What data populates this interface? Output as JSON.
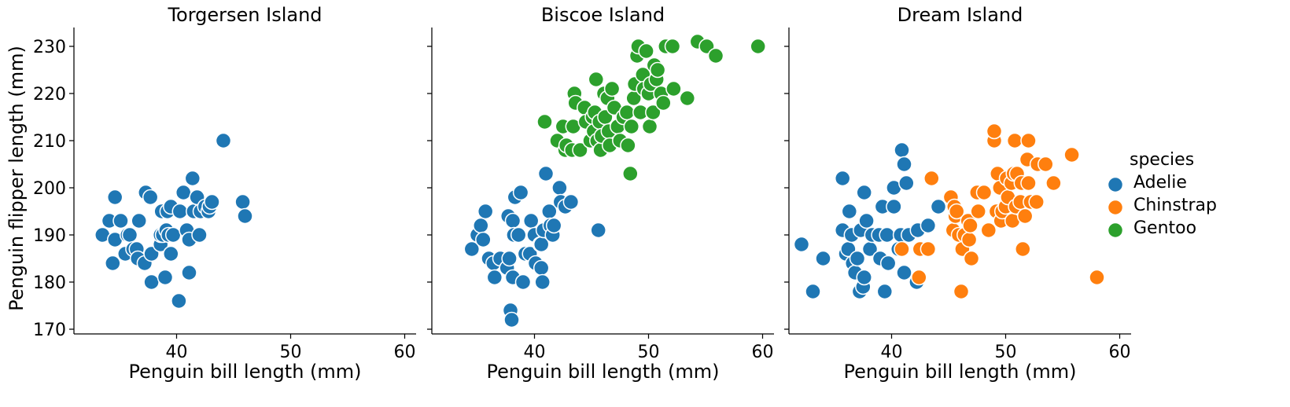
{
  "chart_data": {
    "type": "scatter",
    "xlabel": "Penguin bill length (mm)",
    "ylabel": "Penguin flipper length (mm)",
    "xlim": [
      31,
      61
    ],
    "ylim": [
      169,
      234
    ],
    "xticks": [
      40,
      50,
      60
    ],
    "yticks": [
      170,
      180,
      190,
      200,
      210,
      220,
      230
    ],
    "grid": false,
    "legend": {
      "title": "species",
      "placement": "right",
      "entries": [
        {
          "name": "Adelie",
          "color": "#1f77b4"
        },
        {
          "name": "Chinstrap",
          "color": "#ff7f0e"
        },
        {
          "name": "Gentoo",
          "color": "#2ca02c"
        }
      ]
    },
    "panels": [
      {
        "title": "Torgersen Island",
        "series": [
          {
            "name": "Adelie",
            "color": "#1f77b4",
            "points": [
              [
                33.5,
                190
              ],
              [
                34.1,
                193
              ],
              [
                34.4,
                184
              ],
              [
                34.6,
                198
              ],
              [
                34.6,
                189
              ],
              [
                35.1,
                193
              ],
              [
                35.5,
                186
              ],
              [
                35.7,
                190
              ],
              [
                35.9,
                190
              ],
              [
                36.2,
                187
              ],
              [
                36.5,
                187
              ],
              [
                36.6,
                185
              ],
              [
                36.7,
                193
              ],
              [
                37.2,
                184
              ],
              [
                37.3,
                199
              ],
              [
                37.7,
                198
              ],
              [
                37.8,
                180
              ],
              [
                37.8,
                186
              ],
              [
                38.6,
                188
              ],
              [
                38.6,
                190
              ],
              [
                38.7,
                195
              ],
              [
                38.8,
                190
              ],
              [
                39.0,
                181
              ],
              [
                39.1,
                191
              ],
              [
                39.2,
                195
              ],
              [
                39.3,
                190
              ],
              [
                39.5,
                196
              ],
              [
                39.5,
                186
              ],
              [
                39.7,
                190
              ],
              [
                40.2,
                176
              ],
              [
                40.3,
                195
              ],
              [
                40.6,
                199
              ],
              [
                40.9,
                191
              ],
              [
                41.1,
                182
              ],
              [
                41.1,
                189
              ],
              [
                41.4,
                202
              ],
              [
                41.5,
                195
              ],
              [
                41.8,
                198
              ],
              [
                42.0,
                190
              ],
              [
                42.1,
                195
              ],
              [
                42.5,
                196
              ],
              [
                42.8,
                195
              ],
              [
                42.9,
                196
              ],
              [
                43.1,
                197
              ],
              [
                44.1,
                210
              ],
              [
                45.8,
                197
              ],
              [
                46.0,
                194
              ]
            ]
          }
        ]
      },
      {
        "title": "Biscoe Island",
        "series": [
          {
            "name": "Adelie",
            "color": "#1f77b4",
            "points": [
              [
                34.5,
                187
              ],
              [
                35.0,
                190
              ],
              [
                35.3,
                192
              ],
              [
                35.5,
                189
              ],
              [
                35.7,
                195
              ],
              [
                36.0,
                185
              ],
              [
                36.4,
                184
              ],
              [
                36.5,
                181
              ],
              [
                37.0,
                185
              ],
              [
                37.6,
                183
              ],
              [
                37.7,
                194
              ],
              [
                37.8,
                185
              ],
              [
                37.9,
                174
              ],
              [
                38.0,
                172
              ],
              [
                38.1,
                181
              ],
              [
                38.1,
                193
              ],
              [
                38.2,
                190
              ],
              [
                38.3,
                198
              ],
              [
                38.6,
                190
              ],
              [
                38.8,
                199
              ],
              [
                39.0,
                180
              ],
              [
                39.2,
                186
              ],
              [
                39.6,
                186
              ],
              [
                39.7,
                193
              ],
              [
                40.0,
                190
              ],
              [
                40.1,
                184
              ],
              [
                40.5,
                188
              ],
              [
                40.6,
                183
              ],
              [
                40.6,
                188
              ],
              [
                40.7,
                180
              ],
              [
                40.8,
                191
              ],
              [
                41.0,
                203
              ],
              [
                41.3,
                195
              ],
              [
                41.4,
                192
              ],
              [
                41.6,
                190
              ],
              [
                41.7,
                192
              ],
              [
                42.2,
                200
              ],
              [
                42.3,
                197
              ],
              [
                42.7,
                196
              ],
              [
                43.2,
                197
              ],
              [
                45.6,
                191
              ]
            ]
          },
          {
            "name": "Gentoo",
            "color": "#2ca02c",
            "points": [
              [
                40.9,
                214
              ],
              [
                42.0,
                210
              ],
              [
                42.5,
                213
              ],
              [
                42.7,
                208
              ],
              [
                42.8,
                209
              ],
              [
                43.3,
                208
              ],
              [
                43.4,
                213
              ],
              [
                43.5,
                220
              ],
              [
                43.6,
                218
              ],
              [
                44.0,
                208
              ],
              [
                44.4,
                217
              ],
              [
                44.5,
                214
              ],
              [
                44.9,
                210
              ],
              [
                45.1,
                215
              ],
              [
                45.2,
                212
              ],
              [
                45.3,
                216
              ],
              [
                45.4,
                223
              ],
              [
                45.5,
                210
              ],
              [
                45.7,
                214
              ],
              [
                45.8,
                208
              ],
              [
                45.9,
                211
              ],
              [
                46.1,
                220
              ],
              [
                46.2,
                215
              ],
              [
                46.4,
                219
              ],
              [
                46.5,
                212
              ],
              [
                46.6,
                209
              ],
              [
                46.8,
                221
              ],
              [
                47.0,
                217
              ],
              [
                47.3,
                213
              ],
              [
                47.5,
                210
              ],
              [
                47.8,
                215
              ],
              [
                48.1,
                216
              ],
              [
                48.2,
                209
              ],
              [
                48.4,
                203
              ],
              [
                48.5,
                213
              ],
              [
                48.7,
                219
              ],
              [
                48.8,
                222
              ],
              [
                49.0,
                228
              ],
              [
                49.1,
                230
              ],
              [
                49.3,
                216
              ],
              [
                49.5,
                224
              ],
              [
                49.6,
                221
              ],
              [
                49.8,
                229
              ],
              [
                50.0,
                220
              ],
              [
                50.1,
                213
              ],
              [
                50.2,
                222
              ],
              [
                50.4,
                216
              ],
              [
                50.5,
                226
              ],
              [
                50.7,
                223
              ],
              [
                50.8,
                225
              ],
              [
                51.1,
                220
              ],
              [
                51.3,
                218
              ],
              [
                51.5,
                230
              ],
              [
                52.1,
                230
              ],
              [
                52.2,
                221
              ],
              [
                53.4,
                219
              ],
              [
                54.3,
                231
              ],
              [
                55.1,
                230
              ],
              [
                55.9,
                228
              ],
              [
                59.6,
                230
              ]
            ]
          }
        ]
      },
      {
        "title": "Dream Island",
        "series": [
          {
            "name": "Adelie",
            "color": "#1f77b4",
            "points": [
              [
                32.1,
                188
              ],
              [
                33.1,
                178
              ],
              [
                34.0,
                185
              ],
              [
                35.7,
                202
              ],
              [
                35.7,
                191
              ],
              [
                36.0,
                186
              ],
              [
                36.2,
                187
              ],
              [
                36.3,
                195
              ],
              [
                36.5,
                190
              ],
              [
                36.6,
                184
              ],
              [
                36.8,
                182
              ],
              [
                37.0,
                185
              ],
              [
                37.2,
                178
              ],
              [
                37.3,
                191
              ],
              [
                37.5,
                179
              ],
              [
                37.6,
                181
              ],
              [
                37.6,
                199
              ],
              [
                37.8,
                193
              ],
              [
                38.1,
                187
              ],
              [
                38.3,
                190
              ],
              [
                38.9,
                190
              ],
              [
                39.0,
                185
              ],
              [
                39.2,
                196
              ],
              [
                39.4,
                178
              ],
              [
                39.6,
                190
              ],
              [
                39.7,
                184
              ],
              [
                40.2,
                196
              ],
              [
                40.2,
                200
              ],
              [
                40.6,
                187
              ],
              [
                40.8,
                190
              ],
              [
                40.9,
                208
              ],
              [
                41.1,
                205
              ],
              [
                41.1,
                182
              ],
              [
                41.3,
                201
              ],
              [
                41.5,
                190
              ],
              [
                42.2,
                180
              ],
              [
                42.3,
                191
              ],
              [
                43.2,
                192
              ],
              [
                44.1,
                196
              ]
            ]
          },
          {
            "name": "Chinstrap",
            "color": "#ff7f0e",
            "points": [
              [
                40.9,
                187
              ],
              [
                42.4,
                181
              ],
              [
                42.5,
                187
              ],
              [
                43.2,
                187
              ],
              [
                43.5,
                202
              ],
              [
                45.2,
                198
              ],
              [
                45.4,
                191
              ],
              [
                45.5,
                196
              ],
              [
                45.6,
                194
              ],
              [
                45.7,
                195
              ],
              [
                45.9,
                190
              ],
              [
                46.1,
                178
              ],
              [
                46.2,
                187
              ],
              [
                46.4,
                190
              ],
              [
                46.7,
                193
              ],
              [
                46.8,
                189
              ],
              [
                46.9,
                192
              ],
              [
                47.0,
                185
              ],
              [
                47.5,
                199
              ],
              [
                47.6,
                195
              ],
              [
                48.1,
                199
              ],
              [
                48.5,
                191
              ],
              [
                49.0,
                210
              ],
              [
                49.0,
                212
              ],
              [
                49.2,
                195
              ],
              [
                49.3,
                203
              ],
              [
                49.5,
                200
              ],
              [
                49.6,
                193
              ],
              [
                49.7,
                195
              ],
              [
                50.0,
                196
              ],
              [
                50.1,
                202
              ],
              [
                50.2,
                198
              ],
              [
                50.5,
                201
              ],
              [
                50.6,
                193
              ],
              [
                50.7,
                203
              ],
              [
                50.8,
                210
              ],
              [
                50.9,
                196
              ],
              [
                51.0,
                203
              ],
              [
                51.3,
                197
              ],
              [
                51.4,
                201
              ],
              [
                51.5,
                187
              ],
              [
                51.7,
                194
              ],
              [
                51.9,
                206
              ],
              [
                52.0,
                201
              ],
              [
                52.0,
                210
              ],
              [
                52.2,
                197
              ],
              [
                52.7,
                197
              ],
              [
                52.8,
                205
              ],
              [
                53.5,
                205
              ],
              [
                54.2,
                201
              ],
              [
                55.8,
                207
              ],
              [
                58.0,
                181
              ]
            ]
          }
        ]
      }
    ]
  }
}
